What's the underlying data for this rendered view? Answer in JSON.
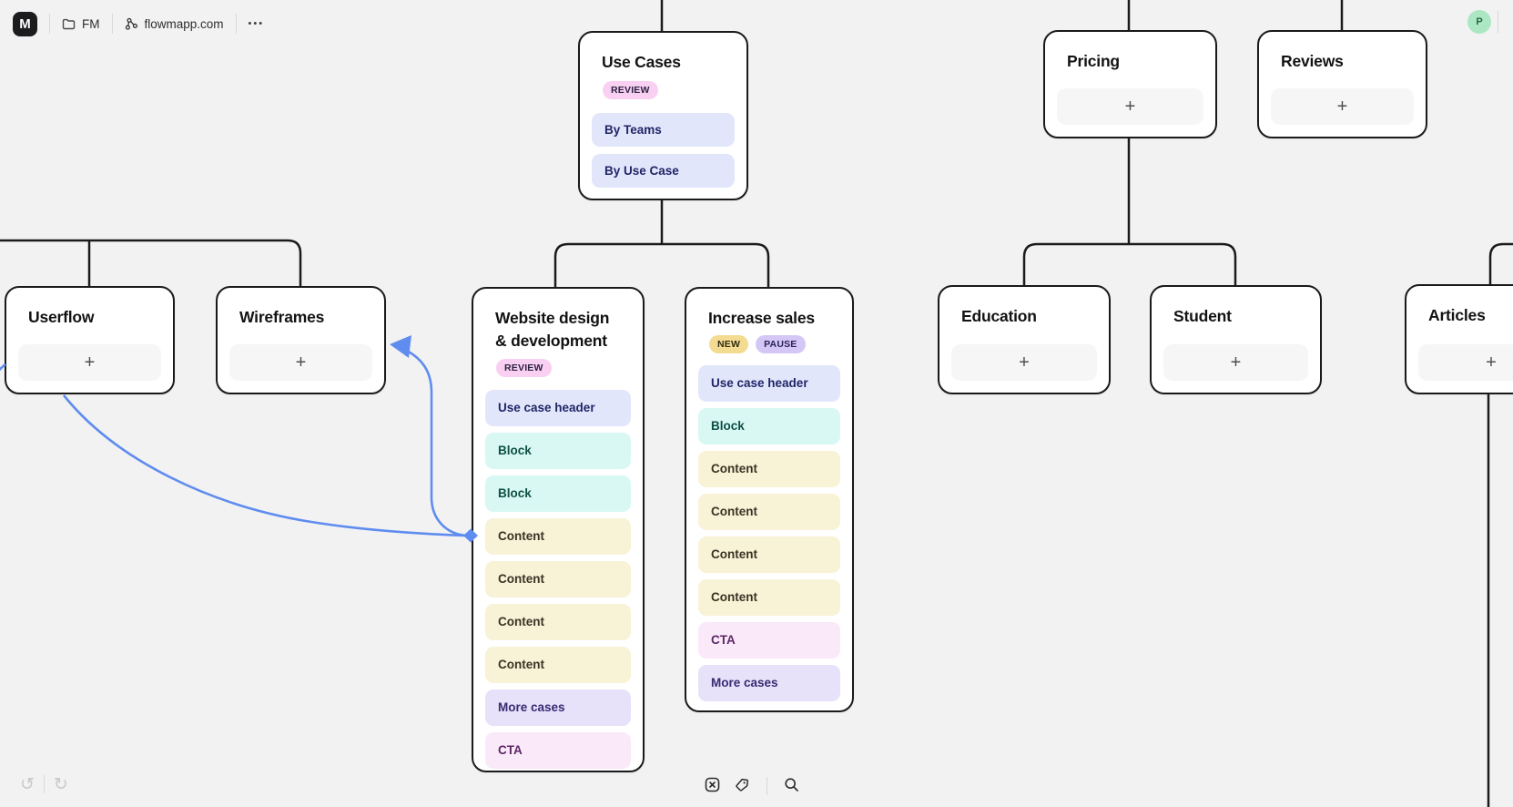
{
  "header": {
    "logo_letter": "M",
    "breadcrumb_project": "FM",
    "site_name": "flowmapp.com",
    "more": "•••",
    "avatar_initial": "P"
  },
  "history": {
    "undo_glyph": "↺",
    "redo_glyph": "↻"
  },
  "toolbar_icons": [
    "fit-screen",
    "tag",
    "search"
  ],
  "common": {
    "plus": "+"
  },
  "colors": {
    "canvas": "#f2f2f3",
    "card_border": "#1a1a1a",
    "flow_blue": "#5f8cef",
    "badge_review_bg": "#f9cff2",
    "badge_new_bg": "#f3dc92",
    "badge_pause_bg": "#d4c7f6",
    "item_nav_bg": "#e2e6fb",
    "item_block_bg": "#d9f8f4",
    "item_content_bg": "#f8f2d6",
    "item_more_bg": "#e8e1fa",
    "item_cta_bg": "#fae9f9",
    "avatar_bg": "#abe7c3"
  },
  "cards": {
    "use_cases": {
      "title": "Use Cases",
      "badges": [
        {
          "label": "REVIEW",
          "type": "review"
        }
      ],
      "items": [
        {
          "label": "By Teams",
          "type": "nav"
        },
        {
          "label": "By Use Case",
          "type": "nav"
        }
      ]
    },
    "pricing": {
      "title": "Pricing"
    },
    "reviews": {
      "title": "Reviews"
    },
    "userflow": {
      "title": "Userflow"
    },
    "wireframes": {
      "title": "Wireframes"
    },
    "website_design": {
      "title": "Website design & development",
      "badges": [
        {
          "label": "REVIEW",
          "type": "review"
        }
      ],
      "items": [
        {
          "label": "Use case header",
          "type": "header"
        },
        {
          "label": "Block",
          "type": "block"
        },
        {
          "label": "Block",
          "type": "block"
        },
        {
          "label": "Content",
          "type": "content"
        },
        {
          "label": "Content",
          "type": "content"
        },
        {
          "label": "Content",
          "type": "content"
        },
        {
          "label": "Content",
          "type": "content"
        },
        {
          "label": "More cases",
          "type": "more"
        },
        {
          "label": "CTA",
          "type": "cta"
        }
      ]
    },
    "increase_sales": {
      "title": "Increase sales",
      "badges": [
        {
          "label": "NEW",
          "type": "new"
        },
        {
          "label": "PAUSE",
          "type": "pause"
        }
      ],
      "items": [
        {
          "label": "Use case header",
          "type": "header"
        },
        {
          "label": "Block",
          "type": "block"
        },
        {
          "label": "Content",
          "type": "content"
        },
        {
          "label": "Content",
          "type": "content"
        },
        {
          "label": "Content",
          "type": "content"
        },
        {
          "label": "Content",
          "type": "content"
        },
        {
          "label": "CTA",
          "type": "cta"
        },
        {
          "label": "More cases",
          "type": "more"
        }
      ]
    },
    "education": {
      "title": "Education"
    },
    "student": {
      "title": "Student"
    },
    "articles": {
      "title": "Articles"
    }
  }
}
